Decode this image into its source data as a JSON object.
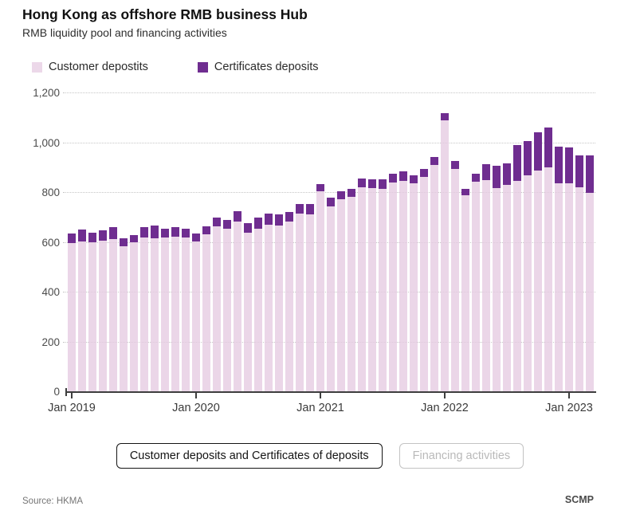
{
  "header": {
    "title": "Hong Kong as offshore RMB business Hub",
    "subtitle": "RMB liquidity pool and financing activities"
  },
  "legend": {
    "items": [
      {
        "label": "Customer depostits",
        "color": "#ecd8e9"
      },
      {
        "label": "Certificates deposits",
        "color": "#6f2d90"
      }
    ]
  },
  "buttons": [
    {
      "label": "Customer deposits and Certificates of deposits",
      "state": "active"
    },
    {
      "label": "Financing activities",
      "state": "inactive"
    }
  ],
  "footer": {
    "source": "Source: HKMA",
    "brand": "SCMP"
  },
  "chart_data": {
    "type": "bar",
    "stacked": true,
    "title": "Hong Kong as offshore RMB business Hub",
    "subtitle": "RMB liquidity pool and financing activities",
    "ylabel": "",
    "xlabel": "",
    "ylim": [
      0,
      1200
    ],
    "grid": "horizontal-dotted",
    "legend_position": "top-left",
    "x": [
      "Jan 2019",
      "Feb 2019",
      "Mar 2019",
      "Apr 2019",
      "May 2019",
      "Jun 2019",
      "Jul 2019",
      "Aug 2019",
      "Sep 2019",
      "Oct 2019",
      "Nov 2019",
      "Dec 2019",
      "Jan 2020",
      "Feb 2020",
      "Mar 2020",
      "Apr 2020",
      "May 2020",
      "Jun 2020",
      "Jul 2020",
      "Aug 2020",
      "Sep 2020",
      "Oct 2020",
      "Nov 2020",
      "Dec 2020",
      "Jan 2021",
      "Feb 2021",
      "Mar 2021",
      "Apr 2021",
      "May 2021",
      "Jun 2021",
      "Jul 2021",
      "Aug 2021",
      "Sep 2021",
      "Oct 2021",
      "Nov 2021",
      "Dec 2021",
      "Jan 2022",
      "Feb 2022",
      "Mar 2022",
      "Apr 2022",
      "May 2022",
      "Jun 2022",
      "Jul 2022",
      "Aug 2022",
      "Sep 2022",
      "Oct 2022",
      "Nov 2022",
      "Dec 2022",
      "Jan 2023",
      "Feb 2023",
      "Mar 2023"
    ],
    "series": [
      {
        "name": "Customer depostits",
        "color": "#ecd8e9",
        "values": [
          600,
          605,
          602,
          608,
          615,
          585,
          603,
          620,
          618,
          620,
          625,
          622,
          606,
          633,
          665,
          657,
          684,
          641,
          657,
          673,
          668,
          684,
          716,
          714,
          805,
          745,
          774,
          783,
          822,
          820,
          817,
          842,
          848,
          838,
          865,
          913,
          1092,
          897,
          790,
          846,
          851,
          820,
          833,
          849,
          872,
          890,
          902,
          840,
          840,
          822,
          799
        ]
      },
      {
        "name": "Certificates deposits",
        "color": "#6f2d90",
        "values": [
          37,
          47,
          38,
          42,
          49,
          33,
          29,
          43,
          50,
          35,
          37,
          35,
          30,
          32,
          35,
          35,
          42,
          37,
          43,
          43,
          45,
          40,
          40,
          42,
          30,
          35,
          32,
          34,
          35,
          34,
          37,
          36,
          40,
          32,
          32,
          32,
          27,
          32,
          27,
          32,
          64,
          88,
          87,
          142,
          136,
          153,
          160,
          147,
          144,
          130,
          151
        ]
      }
    ],
    "ytick_values": [
      0,
      200,
      400,
      600,
      800,
      1000,
      1200
    ],
    "ytick_labels": [
      "0",
      "200",
      "400",
      "600",
      "800",
      "1,000",
      "1,200"
    ],
    "xtick_month_indices": [
      0,
      12,
      24,
      36,
      48
    ],
    "xtick_labels": [
      "Jan 2019",
      "Jan 2020",
      "Jan 2021",
      "Jan 2022",
      "Jan 2023"
    ]
  }
}
